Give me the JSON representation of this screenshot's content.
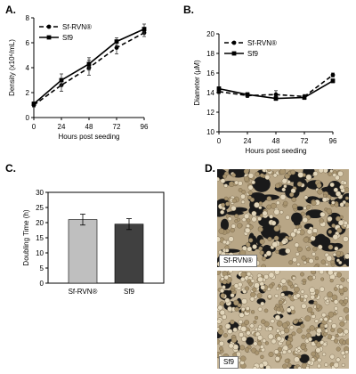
{
  "panels": {
    "a": {
      "letter": "A."
    },
    "b": {
      "letter": "B."
    },
    "c": {
      "letter": "C."
    },
    "d": {
      "letter": "D."
    }
  },
  "chart_data": [
    {
      "type": "line",
      "xlabel": "Hours post seeding",
      "ylabel": "Density (x10⁶/mL)",
      "x": [
        0,
        24,
        48,
        72,
        96
      ],
      "xlim": [
        0,
        96
      ],
      "ylim": [
        0,
        8
      ],
      "yticks": [
        0,
        2,
        4,
        6,
        8
      ],
      "legend_position": "top-left",
      "series": [
        {
          "name": "Sf-RVN®",
          "style": "dashed",
          "marker": "circle",
          "values": [
            1.0,
            2.6,
            4.0,
            5.6,
            6.8
          ],
          "errors": [
            0.15,
            0.5,
            0.6,
            0.5,
            0.3
          ]
        },
        {
          "name": "Sf9",
          "style": "solid",
          "marker": "square",
          "values": [
            1.1,
            3.0,
            4.3,
            6.1,
            7.1
          ],
          "errors": [
            0.15,
            0.5,
            0.5,
            0.3,
            0.4
          ]
        }
      ]
    },
    {
      "type": "line",
      "xlabel": "Hours post seeding",
      "ylabel": "Diameter (µM)",
      "x": [
        0,
        24,
        48,
        72,
        96
      ],
      "xlim": [
        0,
        96
      ],
      "ylim": [
        10,
        20
      ],
      "yticks": [
        10,
        12,
        14,
        16,
        18,
        20
      ],
      "legend_position": "top-left",
      "series": [
        {
          "name": "Sf-RVN®",
          "style": "dashed",
          "marker": "circle",
          "values": [
            14.1,
            13.7,
            13.8,
            13.6,
            15.8
          ],
          "errors": [
            0.2,
            0.2,
            0.4,
            0.2,
            0.2
          ]
        },
        {
          "name": "Sf9",
          "style": "solid",
          "marker": "square",
          "values": [
            14.4,
            13.8,
            13.4,
            13.5,
            15.2
          ],
          "errors": [
            0.2,
            0.2,
            0.2,
            0.2,
            0.2
          ]
        }
      ]
    },
    {
      "type": "bar",
      "categories": [
        "Sf-RVN®",
        "Sf9"
      ],
      "values": [
        21,
        19.5
      ],
      "errors": [
        1.8,
        1.8
      ],
      "colors": [
        "#bfbfbf",
        "#404040"
      ],
      "ylabel": "Doubling Time (h)",
      "ylim": [
        0,
        30
      ],
      "yticks": [
        0,
        5,
        10,
        15,
        20,
        25,
        30
      ]
    }
  ],
  "micrographs": [
    {
      "label": "Sf-RVN®"
    },
    {
      "label": "Sf9"
    }
  ]
}
